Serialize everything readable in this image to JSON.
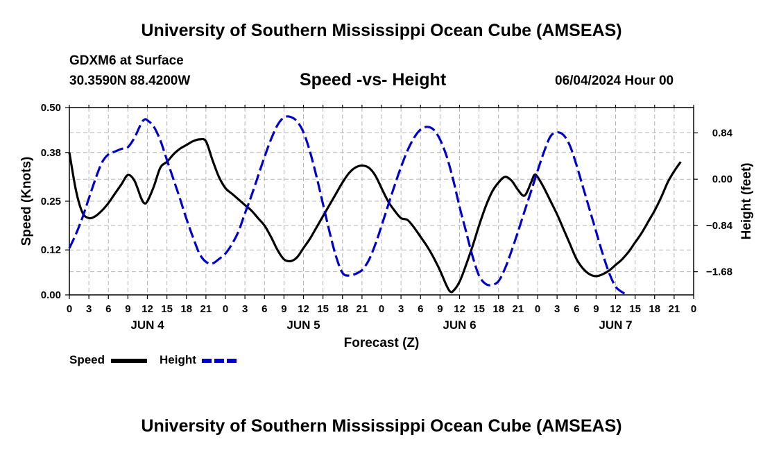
{
  "page": {
    "title_top": "University of Southern Mississippi Ocean Cube (AMSEAS)",
    "title_bottom": "University of Southern Mississippi Ocean Cube (AMSEAS)",
    "station": "GDXM6 at Surface",
    "coords": "30.3590N  88.4200W",
    "date": "06/04/2024 Hour 00"
  },
  "legend": {
    "speed_label": "Speed",
    "height_label": "Height"
  },
  "colors": {
    "speed": "#000000",
    "height": "#0000cc",
    "grid": "#b4b4b4"
  },
  "chart_data": {
    "type": "line",
    "title": "Speed -vs- Height",
    "xlabel": "Forecast (Z)",
    "ylabel_left": "Speed (Knots)",
    "ylabel_right": "Height (feet)",
    "x_ticks": [
      "0",
      "3",
      "6",
      "9",
      "12",
      "15",
      "18",
      "21",
      "0",
      "3",
      "6",
      "9",
      "12",
      "15",
      "18",
      "21",
      "0",
      "3",
      "6",
      "9",
      "12",
      "15",
      "18",
      "21",
      "0",
      "3",
      "6",
      "9",
      "12",
      "15",
      "18",
      "21",
      "0"
    ],
    "day_labels": [
      {
        "label": "JUN 4",
        "hour": 12
      },
      {
        "label": "JUN 5",
        "hour": 36
      },
      {
        "label": "JUN 6",
        "hour": 60
      },
      {
        "label": "JUN 7",
        "hour": 84
      }
    ],
    "xlim": [
      0,
      96
    ],
    "y_left_ticks": [
      "0.00",
      "0.12",
      "0.25",
      "0.38",
      "0.50"
    ],
    "ylim_left": [
      0,
      0.5
    ],
    "y_right_ticks": [
      {
        "label": "−1.68",
        "value": -1.68
      },
      {
        "label": "−0.84",
        "value": -0.84
      },
      {
        "label": "0.00",
        "value": 0.0
      },
      {
        "label": "0.84",
        "value": 0.84
      }
    ],
    "ylim_right": [
      -2.1,
      1.3
    ],
    "grid": true,
    "series": [
      {
        "name": "Speed",
        "axis": "left",
        "style": "solid",
        "points": [
          [
            0,
            0.38
          ],
          [
            1,
            0.28
          ],
          [
            2,
            0.22
          ],
          [
            3,
            0.205
          ],
          [
            4,
            0.21
          ],
          [
            5,
            0.225
          ],
          [
            6,
            0.245
          ],
          [
            7,
            0.27
          ],
          [
            8,
            0.295
          ],
          [
            9,
            0.32
          ],
          [
            10,
            0.305
          ],
          [
            11,
            0.26
          ],
          [
            11.5,
            0.245
          ],
          [
            12,
            0.25
          ],
          [
            13,
            0.29
          ],
          [
            14,
            0.34
          ],
          [
            15,
            0.355
          ],
          [
            16,
            0.375
          ],
          [
            17,
            0.39
          ],
          [
            18,
            0.4
          ],
          [
            19,
            0.41
          ],
          [
            20,
            0.415
          ],
          [
            21,
            0.41
          ],
          [
            22,
            0.36
          ],
          [
            23,
            0.315
          ],
          [
            24,
            0.285
          ],
          [
            25,
            0.27
          ],
          [
            26,
            0.255
          ],
          [
            27,
            0.24
          ],
          [
            28,
            0.225
          ],
          [
            29,
            0.205
          ],
          [
            30,
            0.185
          ],
          [
            31,
            0.155
          ],
          [
            32,
            0.12
          ],
          [
            33,
            0.095
          ],
          [
            34,
            0.09
          ],
          [
            35,
            0.1
          ],
          [
            36,
            0.125
          ],
          [
            37,
            0.15
          ],
          [
            38,
            0.18
          ],
          [
            39,
            0.21
          ],
          [
            40,
            0.24
          ],
          [
            41,
            0.27
          ],
          [
            42,
            0.3
          ],
          [
            43,
            0.325
          ],
          [
            44,
            0.34
          ],
          [
            45,
            0.345
          ],
          [
            46,
            0.34
          ],
          [
            47,
            0.32
          ],
          [
            48,
            0.285
          ],
          [
            49,
            0.25
          ],
          [
            50,
            0.225
          ],
          [
            51,
            0.205
          ],
          [
            52,
            0.2
          ],
          [
            53,
            0.18
          ],
          [
            54,
            0.155
          ],
          [
            55,
            0.13
          ],
          [
            56,
            0.1
          ],
          [
            57,
            0.065
          ],
          [
            58,
            0.025
          ],
          [
            58.5,
            0.01
          ],
          [
            59,
            0.01
          ],
          [
            60,
            0.035
          ],
          [
            61,
            0.08
          ],
          [
            62,
            0.13
          ],
          [
            63,
            0.185
          ],
          [
            64,
            0.235
          ],
          [
            65,
            0.275
          ],
          [
            66,
            0.3
          ],
          [
            67,
            0.315
          ],
          [
            68,
            0.305
          ],
          [
            69,
            0.28
          ],
          [
            70,
            0.265
          ],
          [
            71,
            0.3
          ],
          [
            71.5,
            0.32
          ],
          [
            72,
            0.315
          ],
          [
            73,
            0.285
          ],
          [
            74,
            0.25
          ],
          [
            75,
            0.215
          ],
          [
            76,
            0.175
          ],
          [
            77,
            0.135
          ],
          [
            78,
            0.095
          ],
          [
            79,
            0.07
          ],
          [
            80,
            0.055
          ],
          [
            81,
            0.05
          ],
          [
            82,
            0.055
          ],
          [
            83,
            0.065
          ],
          [
            84,
            0.08
          ],
          [
            85,
            0.095
          ],
          [
            86,
            0.115
          ],
          [
            87,
            0.14
          ],
          [
            88,
            0.165
          ],
          [
            89,
            0.195
          ],
          [
            90,
            0.225
          ],
          [
            91,
            0.26
          ],
          [
            92,
            0.3
          ],
          [
            93,
            0.33
          ],
          [
            94,
            0.355
          ]
        ]
      },
      {
        "name": "Height",
        "axis": "right",
        "style": "dashed",
        "points": [
          [
            0,
            -1.25
          ],
          [
            1,
            -1.0
          ],
          [
            2,
            -0.7
          ],
          [
            3,
            -0.35
          ],
          [
            4,
            0.0
          ],
          [
            5,
            0.3
          ],
          [
            6,
            0.45
          ],
          [
            7,
            0.5
          ],
          [
            8,
            0.55
          ],
          [
            9,
            0.58
          ],
          [
            10,
            0.75
          ],
          [
            11,
            1.0
          ],
          [
            11.5,
            1.08
          ],
          [
            12,
            1.07
          ],
          [
            13,
            0.95
          ],
          [
            14,
            0.7
          ],
          [
            15,
            0.35
          ],
          [
            16,
            0.0
          ],
          [
            17,
            -0.35
          ],
          [
            18,
            -0.72
          ],
          [
            19,
            -1.05
          ],
          [
            20,
            -1.35
          ],
          [
            21,
            -1.5
          ],
          [
            22,
            -1.53
          ],
          [
            23,
            -1.45
          ],
          [
            24,
            -1.35
          ],
          [
            25,
            -1.18
          ],
          [
            26,
            -0.95
          ],
          [
            27,
            -0.62
          ],
          [
            28,
            -0.3
          ],
          [
            29,
            0.05
          ],
          [
            30,
            0.4
          ],
          [
            31,
            0.72
          ],
          [
            32,
            0.98
          ],
          [
            33,
            1.12
          ],
          [
            34,
            1.13
          ],
          [
            35,
            1.05
          ],
          [
            36,
            0.85
          ],
          [
            37,
            0.5
          ],
          [
            38,
            0.05
          ],
          [
            39,
            -0.45
          ],
          [
            40,
            -0.95
          ],
          [
            41,
            -1.4
          ],
          [
            42,
            -1.7
          ],
          [
            43,
            -1.75
          ],
          [
            44,
            -1.72
          ],
          [
            45,
            -1.65
          ],
          [
            46,
            -1.48
          ],
          [
            47,
            -1.2
          ],
          [
            48,
            -0.85
          ],
          [
            49,
            -0.48
          ],
          [
            50,
            -0.12
          ],
          [
            51,
            0.22
          ],
          [
            52,
            0.52
          ],
          [
            53,
            0.75
          ],
          [
            54,
            0.9
          ],
          [
            55,
            0.95
          ],
          [
            56,
            0.9
          ],
          [
            57,
            0.72
          ],
          [
            58,
            0.42
          ],
          [
            59,
            0.0
          ],
          [
            60,
            -0.5
          ],
          [
            61,
            -0.95
          ],
          [
            62,
            -1.4
          ],
          [
            63,
            -1.75
          ],
          [
            64,
            -1.9
          ],
          [
            65,
            -1.92
          ],
          [
            66,
            -1.85
          ],
          [
            67,
            -1.62
          ],
          [
            68,
            -1.3
          ],
          [
            69,
            -0.95
          ],
          [
            70,
            -0.58
          ],
          [
            71,
            -0.22
          ],
          [
            72,
            0.15
          ],
          [
            73,
            0.5
          ],
          [
            74,
            0.78
          ],
          [
            75,
            0.85
          ],
          [
            76,
            0.8
          ],
          [
            77,
            0.6
          ],
          [
            78,
            0.25
          ],
          [
            79,
            -0.15
          ],
          [
            80,
            -0.55
          ],
          [
            81,
            -0.95
          ],
          [
            82,
            -1.35
          ],
          [
            83,
            -1.7
          ],
          [
            84,
            -1.95
          ],
          [
            85,
            -2.05
          ],
          [
            85.5,
            -2.08
          ]
        ]
      }
    ]
  }
}
